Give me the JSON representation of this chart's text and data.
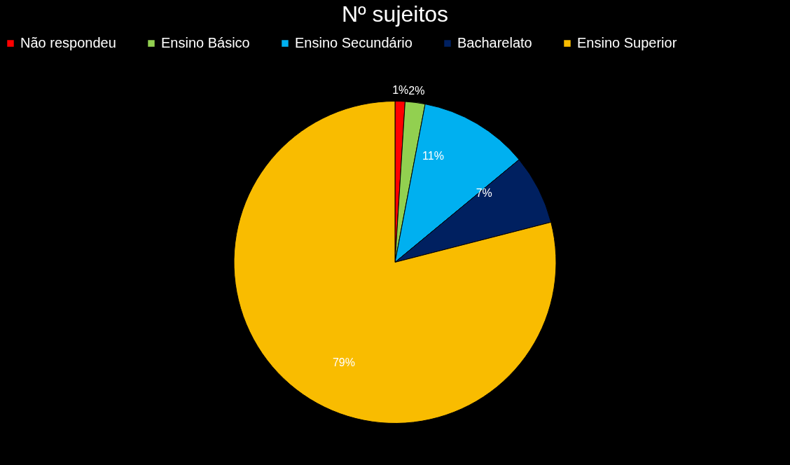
{
  "chart_data": {
    "type": "pie",
    "title": "Nº sujeitos",
    "categories": [
      "Não respondeu",
      "Ensino Básico",
      "Ensino Secundário",
      "Bacharelato",
      "Ensino Superior"
    ],
    "values": [
      1,
      2,
      11,
      7,
      79
    ],
    "colors": [
      "#ff0000",
      "#92d050",
      "#00b0f0",
      "#002060",
      "#f9bc00"
    ],
    "value_labels": [
      "1%",
      "2%",
      "11%",
      "7%",
      "79%"
    ],
    "legend": "top"
  }
}
